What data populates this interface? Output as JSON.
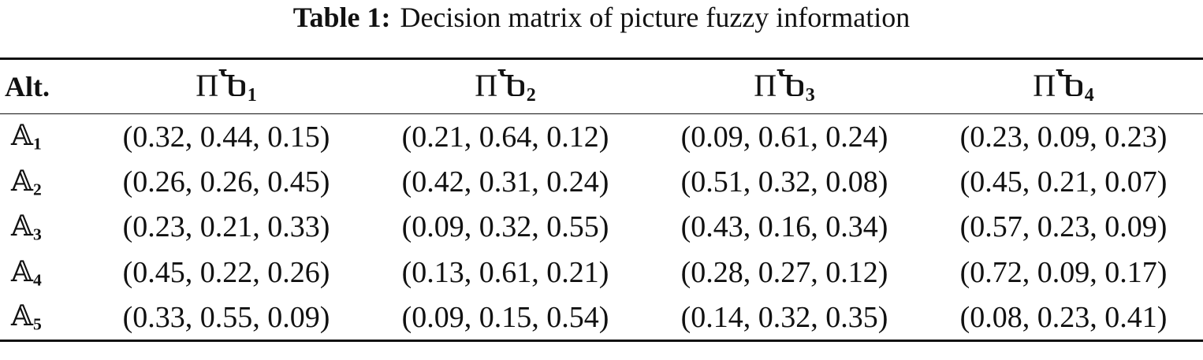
{
  "caption": {
    "label": "Table 1:",
    "text": "Decision matrix of picture fuzzy information"
  },
  "table": {
    "corner": "Alt.",
    "columns": [
      {
        "symbol": "ΠႦ",
        "sub": "1"
      },
      {
        "symbol": "ΠႦ",
        "sub": "2"
      },
      {
        "symbol": "ΠႦ",
        "sub": "3"
      },
      {
        "symbol": "ΠႦ",
        "sub": "4"
      }
    ],
    "rows": [
      {
        "alt": {
          "symbol": "𝔸",
          "sub": "1"
        },
        "cells": [
          "(0.32, 0.44, 0.15)",
          "(0.21, 0.64, 0.12)",
          "(0.09, 0.61, 0.24)",
          "(0.23, 0.09, 0.23)"
        ]
      },
      {
        "alt": {
          "symbol": "𝔸",
          "sub": "2"
        },
        "cells": [
          "(0.26, 0.26, 0.45)",
          "(0.42, 0.31, 0.24)",
          "(0.51, 0.32, 0.08)",
          "(0.45, 0.21, 0.07)"
        ]
      },
      {
        "alt": {
          "symbol": "𝔸",
          "sub": "3"
        },
        "cells": [
          "(0.23, 0.21, 0.33)",
          "(0.09, 0.32, 0.55)",
          "(0.43, 0.16, 0.34)",
          "(0.57, 0.23, 0.09)"
        ]
      },
      {
        "alt": {
          "symbol": "𝔸",
          "sub": "4"
        },
        "cells": [
          "(0.45, 0.22, 0.26)",
          "(0.13, 0.61, 0.21)",
          "(0.28, 0.27, 0.12)",
          "(0.72, 0.09, 0.17)"
        ]
      },
      {
        "alt": {
          "symbol": "𝔸",
          "sub": "5"
        },
        "cells": [
          "(0.33, 0.55, 0.09)",
          "(0.09, 0.15, 0.54)",
          "(0.14, 0.32, 0.35)",
          "(0.08, 0.23, 0.41)"
        ]
      }
    ]
  }
}
